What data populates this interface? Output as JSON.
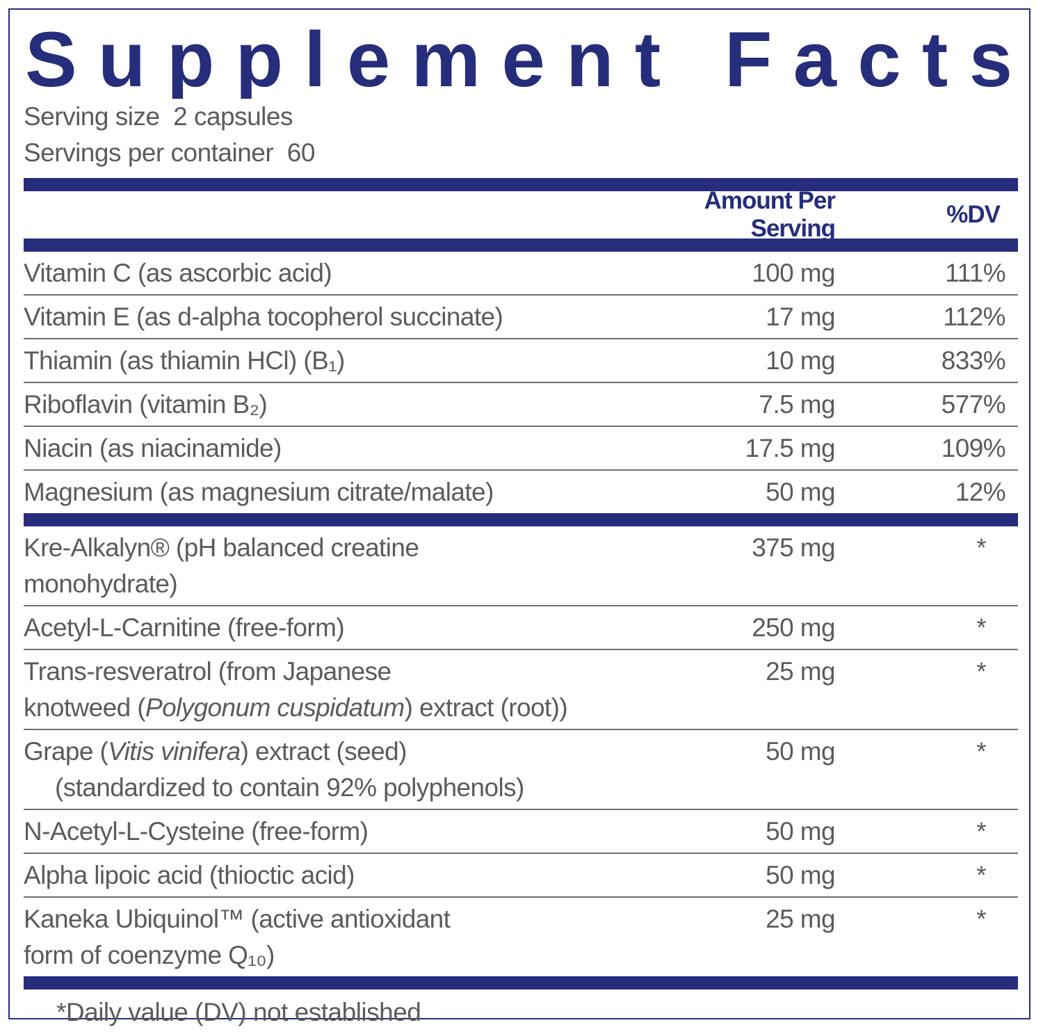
{
  "title": "Supplement Facts",
  "serving": {
    "size_label": "Serving size",
    "size": "2 capsules",
    "per_container_label": "Servings per container",
    "per_container": "60"
  },
  "header": {
    "amount": "Amount Per Serving",
    "dv": "%DV"
  },
  "sections": [
    [
      {
        "lines": [
          [
            "Vitamin C (as ascorbic acid)"
          ]
        ],
        "amount": "100 mg",
        "dv": "111%"
      },
      {
        "lines": [
          [
            "Vitamin E (as d-alpha tocopherol succinate)"
          ]
        ],
        "amount": "17 mg",
        "dv": "112%"
      },
      {
        "lines": [
          [
            "Thiamin (as thiamin HCl) (B₁)"
          ]
        ],
        "amount": "10 mg",
        "dv": "833%"
      },
      {
        "lines": [
          [
            "Riboflavin (vitamin B₂)"
          ]
        ],
        "amount": "7.5 mg",
        "dv": "577%"
      },
      {
        "lines": [
          [
            "Niacin (as niacinamide)"
          ]
        ],
        "amount": "17.5 mg",
        "dv": "109%"
      },
      {
        "lines": [
          [
            "Magnesium (as magnesium citrate/malate)"
          ]
        ],
        "amount": "50 mg",
        "dv": "12%"
      }
    ],
    [
      {
        "lines": [
          [
            "Kre-Alkalyn® (pH balanced creatine"
          ],
          [
            "monohydrate)"
          ]
        ],
        "amount": "375 mg",
        "dv": "*"
      },
      {
        "lines": [
          [
            "Acetyl-L-Carnitine (free-form)"
          ]
        ],
        "amount": "250 mg",
        "dv": "*"
      },
      {
        "lines": [
          [
            "Trans-resveratrol  (from Japanese"
          ],
          [
            "knotweed (",
            {
              "text": "Polygonum cuspidatum",
              "italic": true
            },
            ") extract (root))"
          ]
        ],
        "amount": "25 mg",
        "dv": "*"
      },
      {
        "lines": [
          [
            "Grape (",
            {
              "text": "Vitis vinifera",
              "italic": true
            },
            ") extract (seed)"
          ],
          [
            "(standardized to contain 92% polyphenols)"
          ]
        ],
        "indent_continuation": true,
        "amount": "50 mg",
        "dv": "*"
      },
      {
        "lines": [
          [
            "N-Acetyl-L-Cysteine (free-form)"
          ]
        ],
        "amount": "50 mg",
        "dv": "*"
      },
      {
        "lines": [
          [
            "Alpha lipoic acid (thioctic acid)"
          ]
        ],
        "amount": "50 mg",
        "dv": "*"
      },
      {
        "lines": [
          [
            "Kaneka Ubiquinol™ (active antioxidant"
          ],
          [
            "form of coenzyme Q₁₀)"
          ]
        ],
        "amount": "25 mg",
        "dv": "*"
      }
    ]
  ],
  "footnote": "*Daily value (DV) not established"
}
